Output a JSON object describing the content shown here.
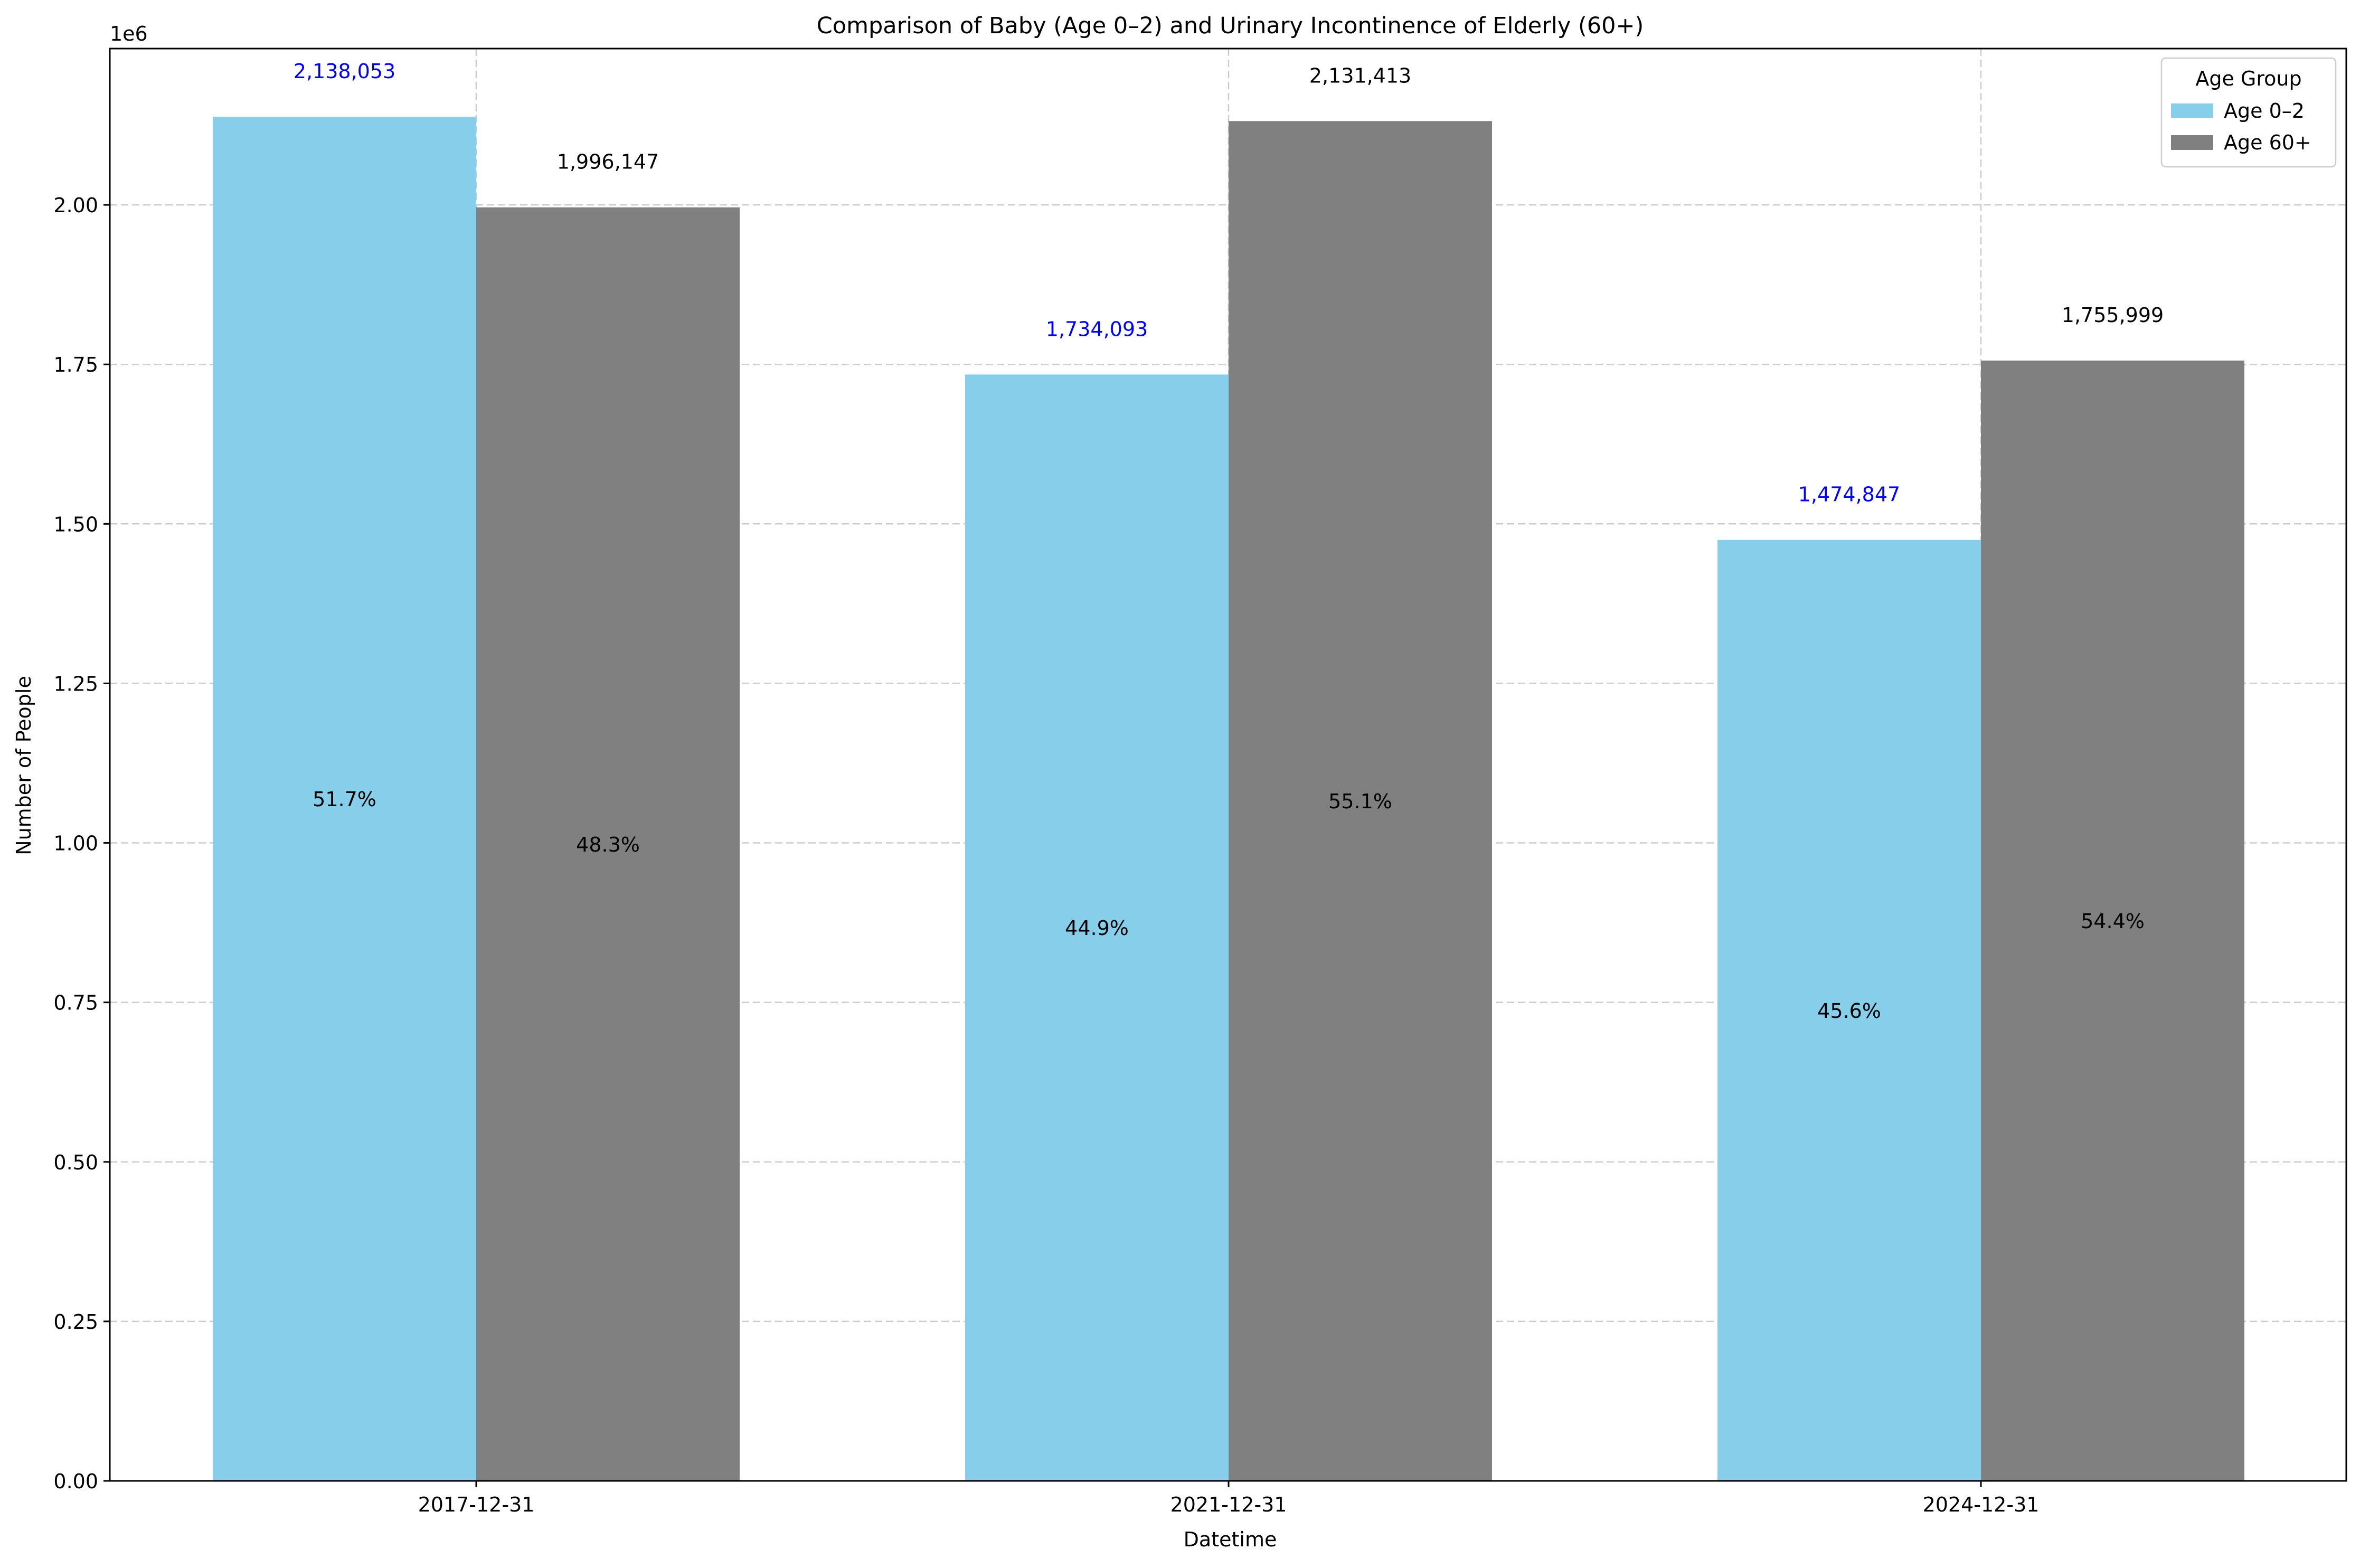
{
  "chart_data": {
    "type": "bar",
    "title": "Comparison of Baby (Age 0–2) and Urinary Incontinence of Elderly (60+)",
    "xlabel": "Datetime",
    "ylabel": "Number of People",
    "y_offset_label": "1e6",
    "categories": [
      "2017-12-31",
      "2021-12-31",
      "2024-12-31"
    ],
    "ylim": [
      0,
      2245000
    ],
    "yticks": [
      0,
      250000,
      500000,
      750000,
      1000000,
      1250000,
      1500000,
      1750000,
      2000000
    ],
    "ytick_labels": [
      "0.00",
      "0.25",
      "0.50",
      "0.75",
      "1.00",
      "1.25",
      "1.50",
      "1.75",
      "2.00"
    ],
    "grid": true,
    "legend": {
      "title": "Age Group",
      "placement": "top-right"
    },
    "series": [
      {
        "name": "Age 0–2",
        "color": "#87ceeb",
        "label_color": "#0000ff",
        "values": [
          2138053,
          1734093,
          1474847
        ],
        "value_labels": [
          "2,138,053",
          "1,734,093",
          "1,474,847"
        ],
        "percent_labels": [
          "51.7%",
          "44.9%",
          "45.6%"
        ]
      },
      {
        "name": "Age 60+",
        "color": "#808080",
        "label_color": "#000000",
        "values": [
          1996147,
          2131413,
          1755999
        ],
        "value_labels": [
          "1,996,147",
          "2,131,413",
          "1,755,999"
        ],
        "percent_labels": [
          "48.3%",
          "55.1%",
          "54.4%"
        ]
      }
    ]
  }
}
